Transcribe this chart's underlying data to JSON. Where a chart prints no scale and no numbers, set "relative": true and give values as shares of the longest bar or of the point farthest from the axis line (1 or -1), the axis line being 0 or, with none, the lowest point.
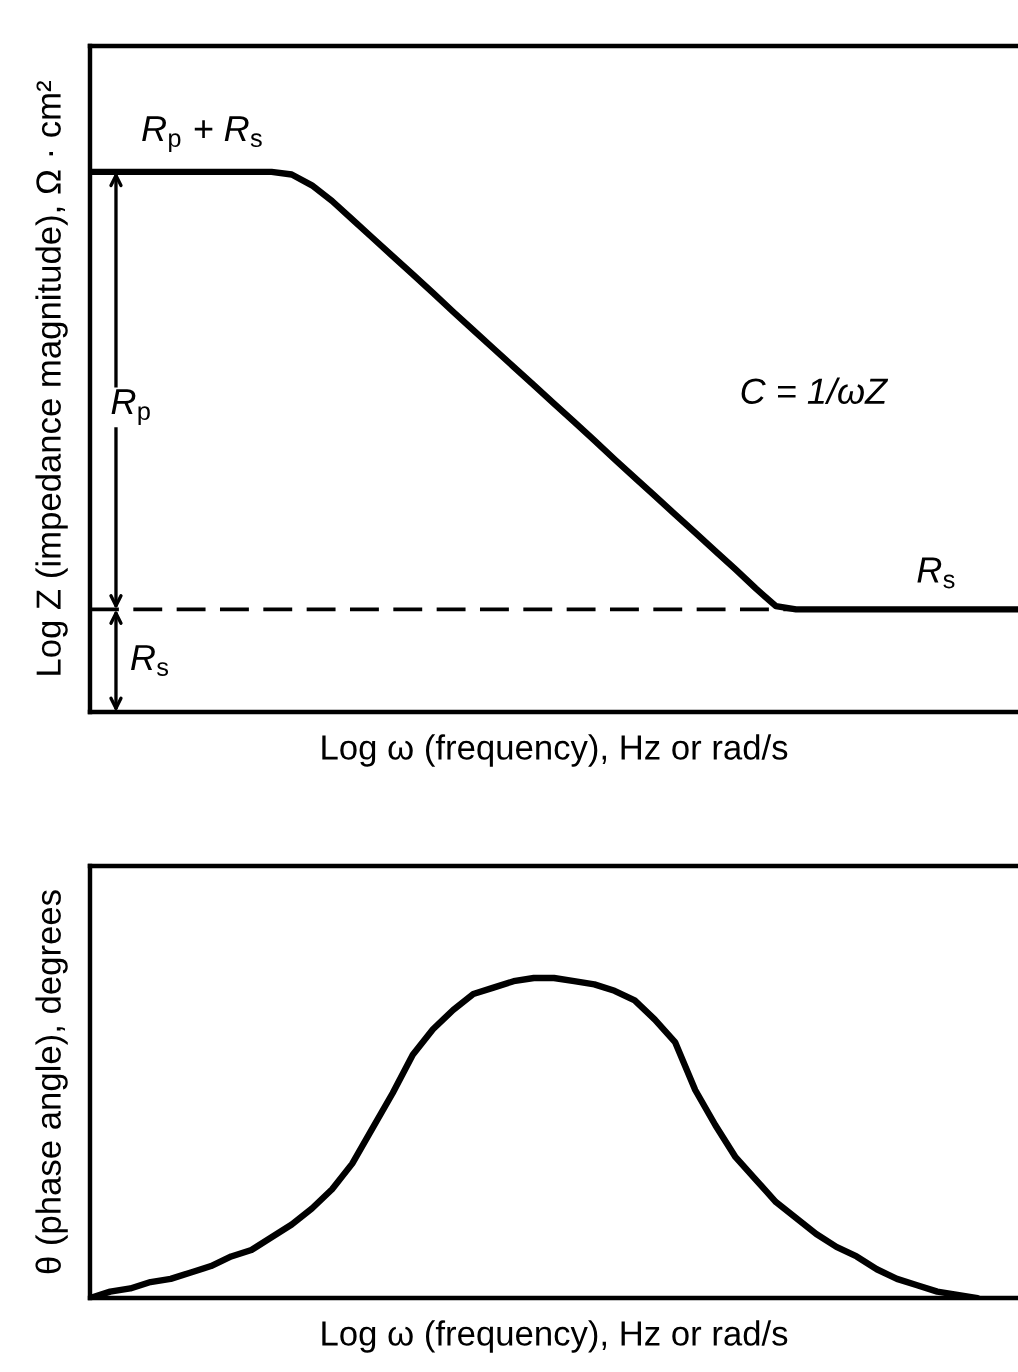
{
  "chart_data": [
    {
      "type": "line",
      "relative": true,
      "xlabel": "Log ω (frequency), Hz or rad/s",
      "ylabel": "Log Z (impedance magnitude), Ω · cm²",
      "categories": [
        null,
        null,
        null,
        null,
        null,
        null,
        null,
        null,
        null,
        null,
        null,
        null,
        null,
        null,
        null,
        null,
        null,
        null,
        null,
        null,
        null,
        null,
        null,
        null,
        null,
        null,
        null,
        null,
        null,
        null,
        null,
        null,
        null,
        null,
        null,
        null,
        null,
        null,
        null,
        null,
        null,
        null,
        null,
        null,
        null,
        null,
        null
      ],
      "series": [
        {
          "color": "#000000",
          "values": [
            1,
            1,
            1,
            1,
            1,
            1,
            1,
            1,
            1,
            1,
            0.995,
            0.975,
            0.946,
            0.912,
            0.878,
            0.844,
            0.81,
            0.776,
            0.741,
            0.707,
            0.673,
            0.639,
            0.605,
            0.571,
            0.537,
            0.503,
            0.468,
            0.434,
            0.4,
            0.366,
            0.332,
            0.298,
            0.264,
            0.229,
            0.196,
            0.19,
            0.19,
            0.19,
            0.19,
            0.19,
            0.19,
            0.19,
            0.19,
            0.19,
            0.19,
            0.19,
            0.19
          ]
        }
      ],
      "ref_lines": [
        {
          "axis": "y",
          "value": 0.19,
          "color": "#000000",
          "line_style": "dashed"
        }
      ],
      "annotations": [
        "R$_{p}$ + R$_{s}$",
        "R$_{p}$",
        "R$_{s}$",
        "R$_{s}$",
        "C = 1/ωZ"
      ]
    },
    {
      "type": "line",
      "relative": true,
      "xlabel": "Log ω (frequency), Hz or rad/s",
      "ylabel": "θ (phase angle), degrees",
      "categories": [
        null,
        null,
        null,
        null,
        null,
        null,
        null,
        null,
        null,
        null,
        null,
        null,
        null,
        null,
        null,
        null,
        null,
        null,
        null,
        null,
        null,
        null,
        null,
        null,
        null,
        null,
        null,
        null,
        null,
        null,
        null,
        null,
        null,
        null,
        null,
        null,
        null,
        null,
        null,
        null,
        null,
        null,
        null,
        null,
        null,
        null,
        null
      ],
      "series": [
        {
          "color": "#000000",
          "values": [
            0,
            0.02,
            0.03,
            0.05,
            0.06,
            0.08,
            0.1,
            0.13,
            0.15,
            0.19,
            0.23,
            0.28,
            0.34,
            0.42,
            0.53,
            0.64,
            0.76,
            0.84,
            0.9,
            0.95,
            0.97,
            0.99,
            1,
            1,
            0.99,
            0.98,
            0.96,
            0.93,
            0.87,
            0.8,
            0.65,
            0.54,
            0.44,
            0.37,
            0.3,
            0.25,
            0.2,
            0.16,
            0.13,
            0.09,
            0.06,
            0.04,
            0.02,
            0.01,
            0,
            null,
            null
          ]
        }
      ]
    }
  ]
}
